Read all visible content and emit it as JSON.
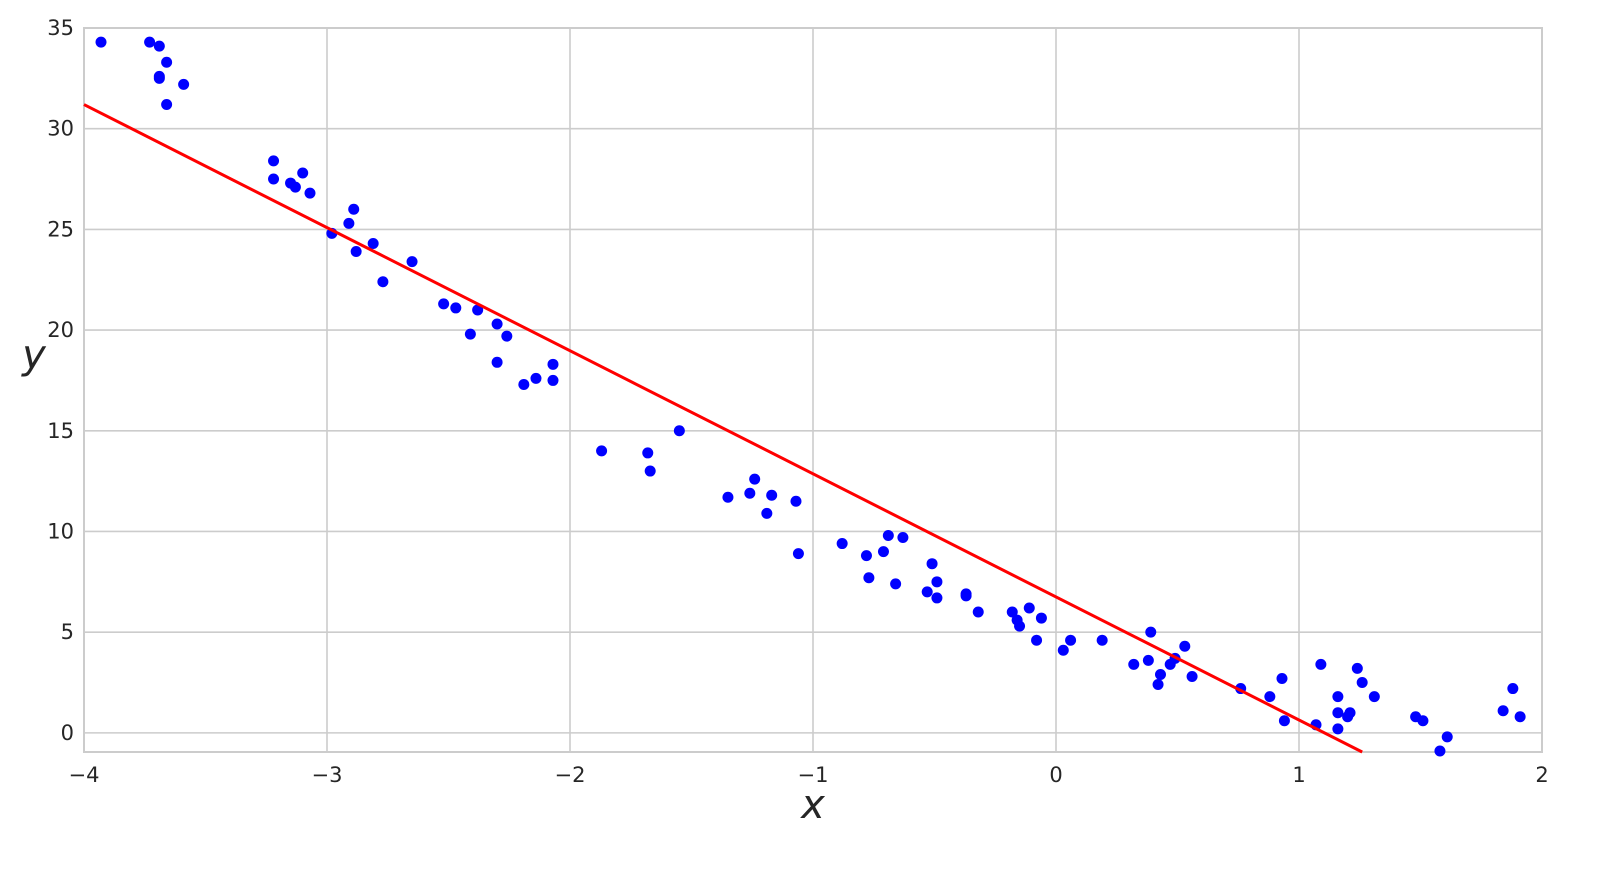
{
  "chart_data": {
    "type": "scatter",
    "x_label": "x",
    "y_label": "y",
    "xlim": [
      -4,
      2
    ],
    "ylim": [
      -0.95,
      35
    ],
    "xticks": [
      {
        "value": -4,
        "label": "−4"
      },
      {
        "value": -3,
        "label": "−3"
      },
      {
        "value": -2,
        "label": "−2"
      },
      {
        "value": -1,
        "label": "−1"
      },
      0,
      1,
      2
    ],
    "yticks": [
      0,
      5,
      10,
      15,
      20,
      25,
      30,
      35
    ],
    "grid": true,
    "series": [
      {
        "color": "#0000ff",
        "x": [
          -3.93,
          -3.73,
          -3.69,
          -3.66,
          -3.69,
          -3.69,
          -3.59,
          -3.66,
          -3.22,
          -3.22,
          -3.15,
          -3.13,
          -3.1,
          -3.07,
          -2.89,
          -2.91,
          -2.98,
          -2.81,
          -2.88,
          -2.65,
          -2.77,
          -2.52,
          -2.47,
          -2.38,
          -2.3,
          -2.26,
          -2.41,
          -2.3,
          -2.07,
          -2.14,
          -2.07,
          -2.19,
          -1.87,
          -1.55,
          -1.68,
          -1.67,
          -1.35,
          -1.26,
          -1.24,
          -1.17,
          -1.19,
          -1.07,
          -1.06,
          -0.88,
          -0.78,
          -0.77,
          -0.69,
          -0.71,
          -0.63,
          -0.66,
          -0.51,
          -0.49,
          -0.53,
          -0.49,
          -0.37,
          -0.37,
          -0.32,
          -0.18,
          -0.16,
          -0.15,
          -0.11,
          -0.06,
          -0.08,
          0.03,
          0.06,
          0.19,
          0.32,
          0.39,
          0.38,
          0.43,
          0.42,
          0.47,
          0.49,
          0.53,
          0.56,
          0.76,
          0.88,
          0.93,
          0.94,
          1.07,
          1.09,
          1.16,
          1.16,
          1.16,
          1.21,
          1.2,
          1.24,
          1.26,
          1.31,
          1.48,
          1.51,
          1.58,
          1.61,
          1.84,
          1.88,
          1.91
        ],
        "values": [
          34.3,
          34.3,
          34.1,
          33.3,
          32.6,
          32.5,
          32.2,
          31.2,
          28.4,
          27.5,
          27.3,
          27.1,
          27.8,
          26.8,
          26.0,
          25.3,
          24.8,
          24.3,
          23.9,
          23.4,
          22.4,
          21.3,
          21.1,
          21.0,
          20.3,
          19.7,
          19.8,
          18.4,
          18.3,
          17.6,
          17.5,
          17.3,
          14.0,
          15.0,
          13.9,
          13.0,
          11.7,
          11.9,
          12.6,
          11.8,
          10.9,
          11.5,
          8.9,
          9.4,
          8.8,
          7.7,
          9.8,
          9.0,
          9.7,
          7.4,
          8.4,
          7.5,
          7.0,
          6.7,
          6.9,
          6.8,
          6.0,
          6.0,
          5.6,
          5.3,
          6.2,
          5.7,
          4.6,
          4.1,
          4.6,
          4.6,
          3.4,
          5.0,
          3.6,
          2.9,
          2.4,
          3.4,
          3.7,
          4.3,
          2.8,
          2.2,
          1.8,
          2.7,
          0.6,
          0.4,
          3.4,
          1.8,
          1.0,
          0.2,
          1.0,
          0.8,
          3.2,
          2.5,
          1.8,
          0.8,
          0.6,
          -0.9,
          -0.2,
          1.1,
          2.2,
          0.8
        ]
      }
    ],
    "fit_line": {
      "color": "#ff0000",
      "x": [
        -4,
        1.26
      ],
      "values": [
        31.2,
        -0.95
      ]
    }
  }
}
